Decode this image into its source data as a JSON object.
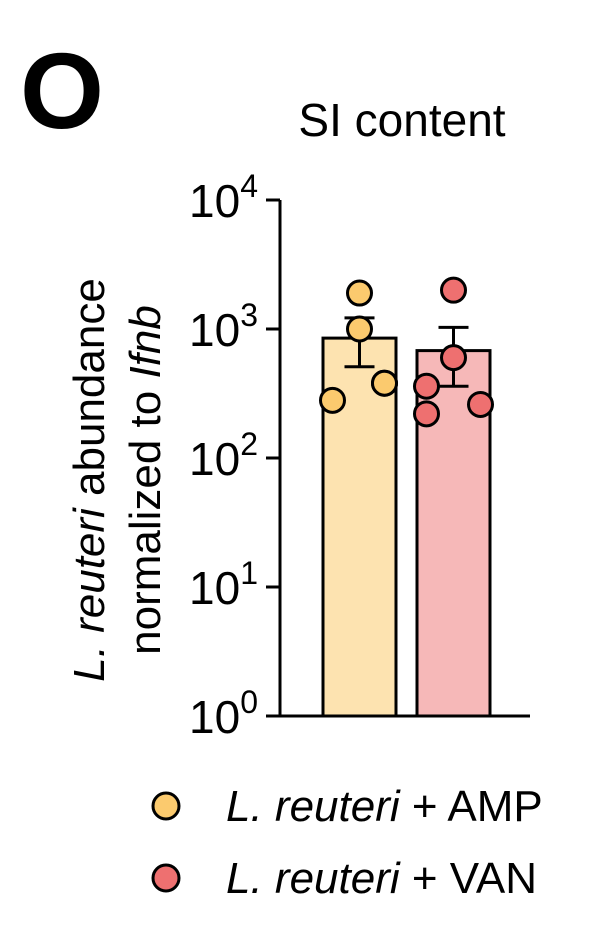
{
  "panel_label": "O",
  "chart_data": {
    "type": "bar",
    "title": "SI content",
    "ylabel_line1": {
      "italic": "L. reuteri",
      "plain": " abundance"
    },
    "ylabel_line2": {
      "plain": "normalized to ",
      "italic": "Ifnb"
    },
    "yscale": "log",
    "ylim": [
      1,
      10000
    ],
    "ytick_base": "10",
    "yticks": [
      {
        "value": 1,
        "exp": "0"
      },
      {
        "value": 10,
        "exp": "1"
      },
      {
        "value": 100,
        "exp": "2"
      },
      {
        "value": 1000,
        "exp": "3"
      },
      {
        "value": 10000,
        "exp": "4"
      }
    ],
    "grid": false,
    "legend_position": "bottom",
    "series": [
      {
        "italic": "L. reuteri",
        "suffix": " + AMP",
        "mean": 850,
        "sem_low": 510,
        "sem_high": 1220,
        "points": [
          1900,
          1000,
          380,
          380,
          280
        ],
        "bar_color": "#fde3b0",
        "dot_color": "#fbca6e"
      },
      {
        "italic": "L. reuteri",
        "suffix": " + VAN",
        "mean": 680,
        "sem_low": 360,
        "sem_high": 1030,
        "points": [
          2000,
          600,
          360,
          260,
          220
        ],
        "bar_color": "#f6b8b8",
        "dot_color": "#ee7070"
      }
    ]
  }
}
